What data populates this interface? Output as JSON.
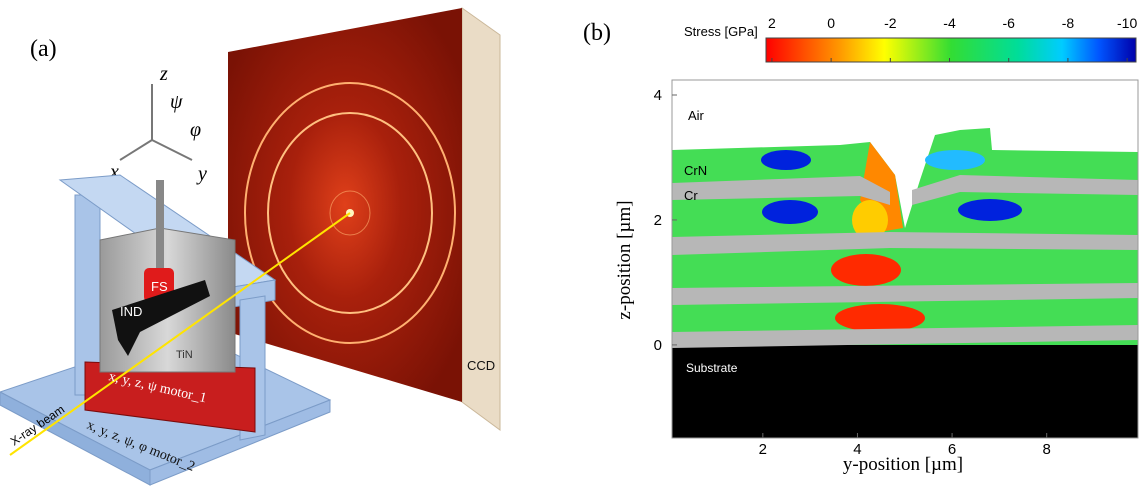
{
  "panel_a": {
    "label": "(a)",
    "axes": {
      "z": "z",
      "psi": "ψ",
      "phi": "φ",
      "x": "x",
      "y": "y"
    },
    "labels": {
      "fs": "FS",
      "ind": "IND",
      "tin": "TiN",
      "ccd": "CCD",
      "beam": "X-ray beam",
      "motor_1": "x, y, z, ψ motor_1",
      "motor_2": "x, y, z, ψ, φ motor_2"
    }
  },
  "panel_b": {
    "label": "(b)",
    "colorbar": {
      "title": "Stress [GPa]",
      "range": [
        2.2,
        -10.3
      ],
      "ticks": [
        2,
        0,
        -2,
        -4,
        -6,
        -8,
        -10
      ]
    },
    "xlabel": "y-position [µm]",
    "ylabel": "z-position [µm]",
    "xlim": [
      0.08,
      9.93
    ],
    "ylim": [
      -1.49,
      4.24
    ],
    "xticks": [
      2,
      4,
      6,
      8
    ],
    "yticks": [
      0,
      2,
      4
    ],
    "regions": {
      "air": "Air",
      "crn": "CrN",
      "cr": "Cr",
      "substrate": "Substrate"
    }
  }
}
